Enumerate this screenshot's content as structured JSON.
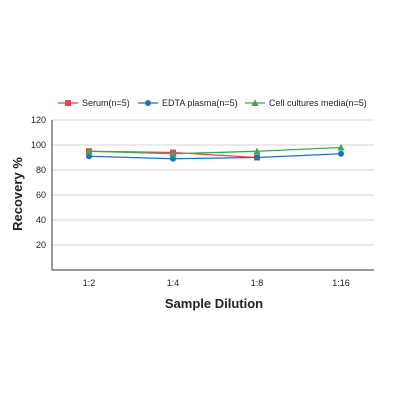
{
  "chart_data": {
    "type": "line",
    "categories": [
      "1:2",
      "1:4",
      "1:8",
      "1:16"
    ],
    "xlabel": "Sample Dilution",
    "ylabel": "Recovery %",
    "ylim": [
      0,
      120
    ],
    "yticks": [
      20,
      40,
      60,
      80,
      100,
      120
    ],
    "grid": true,
    "legend_position": "top",
    "series": [
      {
        "name": "Serum(n=5)",
        "values": [
          95,
          94,
          90,
          null
        ],
        "color": "#e8474a",
        "marker": "square"
      },
      {
        "name": "EDTA plasma(n=5)",
        "values": [
          91,
          89,
          90,
          93
        ],
        "color": "#1f6fc9",
        "marker": "circle"
      },
      {
        "name": "Cell cultures media(n=5)",
        "values": [
          95,
          93,
          95,
          98
        ],
        "color": "#3aaa52",
        "marker": "triangle"
      }
    ]
  }
}
